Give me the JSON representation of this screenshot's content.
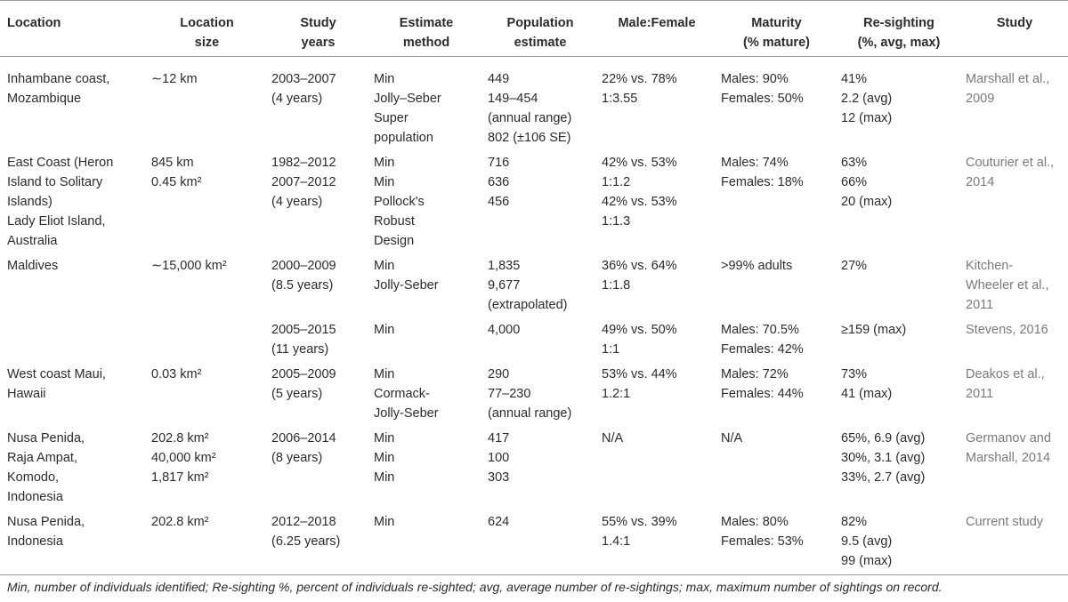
{
  "table": {
    "header": [
      [
        "Location"
      ],
      [
        "Location",
        "size"
      ],
      [
        "Study",
        "years"
      ],
      [
        "Estimate",
        "method"
      ],
      [
        "Population",
        "estimate"
      ],
      [
        "Male:Female"
      ],
      [
        "Maturity",
        "(% mature)"
      ],
      [
        "Re-sighting",
        "(%, avg, max)"
      ],
      [
        "Study"
      ]
    ],
    "rows": [
      [
        [
          "Inhambane coast,",
          "Mozambique"
        ],
        [
          "∼12 km"
        ],
        [
          "2003–2007",
          "(4 years)"
        ],
        [
          "Min",
          "Jolly–Seber",
          "Super",
          "population"
        ],
        [
          "449",
          "149–454",
          "(annual range)",
          "802 (±106 SE)"
        ],
        [
          "22% vs. 78%",
          "1:3.55"
        ],
        [
          "Males: 90%",
          "Females: 50%"
        ],
        [
          "41%",
          "2.2 (avg)",
          "12 (max)"
        ],
        [
          "Marshall et al.,",
          "2009"
        ]
      ],
      [
        [
          "East Coast (Heron",
          "Island to Solitary",
          "Islands)",
          "Lady Eliot Island,",
          "Australia"
        ],
        [
          "845 km",
          "0.45 km²"
        ],
        [
          "1982–2012",
          "2007–2012",
          "(4 years)"
        ],
        [
          "Min",
          "Min",
          "Pollock's",
          "Robust",
          "Design"
        ],
        [
          "716",
          "636",
          "456"
        ],
        [
          "42% vs. 53%",
          "1:1.2",
          "42% vs. 53%",
          "1:1.3"
        ],
        [
          "Males: 74%",
          "Females: 18%"
        ],
        [
          "63%",
          "66%",
          "20 (max)"
        ],
        [
          "Couturier et al.,",
          "2014"
        ]
      ],
      [
        [
          "Maldives"
        ],
        [
          "∼15,000 km²"
        ],
        [
          "2000–2009",
          "(8.5 years)"
        ],
        [
          "Min",
          "Jolly-Seber"
        ],
        [
          "1,835",
          "9,677",
          "(extrapolated)"
        ],
        [
          "36% vs. 64%",
          "1:1.8"
        ],
        [
          ">99% adults"
        ],
        [
          "27%"
        ],
        [
          "Kitchen-",
          "Wheeler et al.,",
          "2011"
        ]
      ],
      [
        [],
        [],
        [
          "2005–2015",
          "(11 years)"
        ],
        [
          "Min"
        ],
        [
          "4,000"
        ],
        [
          "49% vs. 50%",
          "1:1"
        ],
        [
          "Males: 70.5%",
          "Females: 42%"
        ],
        [
          "≥159 (max)"
        ],
        [
          "Stevens, 2016"
        ]
      ],
      [
        [
          "West coast Maui,",
          "Hawaii"
        ],
        [
          "0.03 km²"
        ],
        [
          "2005–2009",
          "(5 years)"
        ],
        [
          "Min",
          "Cormack-",
          "Jolly-Seber"
        ],
        [
          "290",
          "77–230",
          "(annual range)"
        ],
        [
          "53% vs. 44%",
          "1.2:1"
        ],
        [
          "Males: 72%",
          "Females: 44%"
        ],
        [
          "73%",
          "41 (max)"
        ],
        [
          "Deakos et al.,",
          "2011"
        ]
      ],
      [
        [
          "Nusa Penida,",
          "Raja Ampat,",
          "Komodo,",
          "Indonesia"
        ],
        [
          "202.8 km²",
          "40,000 km²",
          "1,817 km²"
        ],
        [
          "2006–2014",
          "(8 years)"
        ],
        [
          "Min",
          "Min",
          "Min"
        ],
        [
          "417",
          "100",
          "303"
        ],
        [
          "N/A"
        ],
        [
          "N/A"
        ],
        [
          "65%, 6.9 (avg)",
          "30%, 3.1 (avg)",
          "33%, 2.7 (avg)"
        ],
        [
          "Germanov and",
          "Marshall, 2014"
        ]
      ],
      [
        [
          "Nusa Penida,",
          "Indonesia"
        ],
        [
          "202.8 km²"
        ],
        [
          "2012–2018",
          "(6.25 years)"
        ],
        [
          "Min"
        ],
        [
          "624"
        ],
        [
          "55% vs. 39%",
          "1.4:1"
        ],
        [
          "Males: 80%",
          "Females: 53%"
        ],
        [
          "82%",
          "9.5 (avg)",
          "99 (max)"
        ],
        [
          "Current study"
        ]
      ]
    ],
    "footnote": "Min, number of individuals identified; Re-sighting %, percent of individuals re-sighted; avg, average number of re-sightings; max, maximum number of sightings on record."
  }
}
